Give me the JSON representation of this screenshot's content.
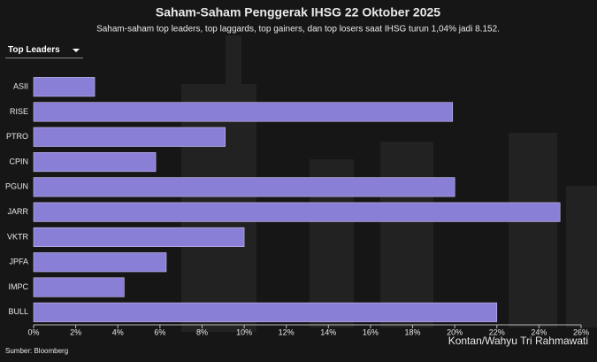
{
  "chart_data": {
    "type": "hbar",
    "title": "Saham-Saham Penggerak IHSG 22 Oktober 2025",
    "subtitle": "Saham-saham top leaders, top laggards, top gainers, dan top losers saat IHSG turun 1,04% jadi 8.152.",
    "selector": "Top Leaders",
    "source": "Sumber: Bloomberg",
    "credit": "Kontan/Wahyu Tri Rahmawati",
    "categories": [
      "ASII",
      "RISE",
      "PTRO",
      "CPIN",
      "PGUN",
      "JARR",
      "VKTR",
      "JPFA",
      "IMPC",
      "BULL"
    ],
    "values": [
      2.9,
      19.9,
      9.1,
      5.8,
      20.0,
      25.0,
      10.0,
      6.3,
      4.3,
      22.0
    ],
    "color": "#8a7fd6",
    "xlim": [
      0,
      26
    ],
    "xticks": [
      {
        "value": 0,
        "label": "0%"
      },
      {
        "value": 2,
        "label": "2%"
      },
      {
        "value": 4,
        "label": "4%"
      },
      {
        "value": 6,
        "label": "6%"
      },
      {
        "value": 8,
        "label": "8%"
      },
      {
        "value": 10,
        "label": "10%"
      },
      {
        "value": 12,
        "label": "12%"
      },
      {
        "value": 14,
        "label": "14%"
      },
      {
        "value": 16,
        "label": "16%"
      },
      {
        "value": 18,
        "label": "18%"
      },
      {
        "value": 20,
        "label": "20%"
      },
      {
        "value": 22,
        "label": "22%"
      },
      {
        "value": 24,
        "label": "24%"
      },
      {
        "value": 26,
        "label": "26%"
      }
    ]
  }
}
